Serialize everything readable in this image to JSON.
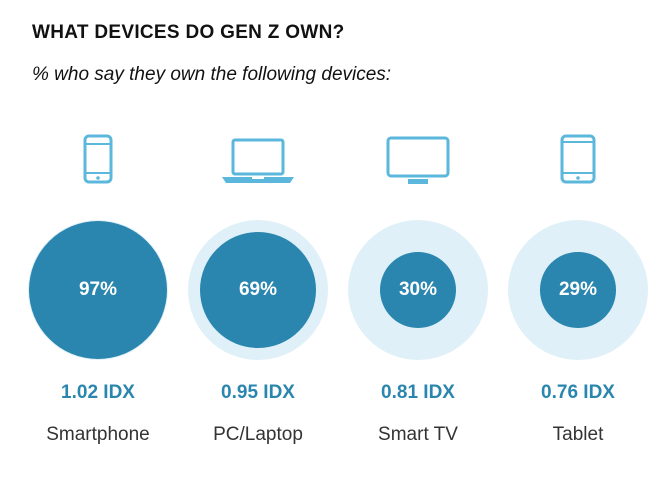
{
  "title": "WHAT DEVICES DO GEN Z OWN?",
  "subtitle": "% who say they own the following devices:",
  "colors": {
    "disc": "#2a86ae",
    "ring": "#dff0f8",
    "icon": "#5bb7dc"
  },
  "chart_data": {
    "type": "bubble",
    "categories": [
      "Smartphone",
      "PC/Laptop",
      "Smart TV",
      "Tablet"
    ],
    "values": [
      97,
      69,
      30,
      29
    ],
    "value_labels": [
      "97%",
      "69%",
      "30%",
      "29%"
    ],
    "index_labels": [
      "1.02 IDX",
      "0.95 IDX",
      "0.81 IDX",
      "0.76 IDX"
    ],
    "icons": [
      "smartphone-icon",
      "laptop-icon",
      "tv-icon",
      "tablet-icon"
    ]
  }
}
